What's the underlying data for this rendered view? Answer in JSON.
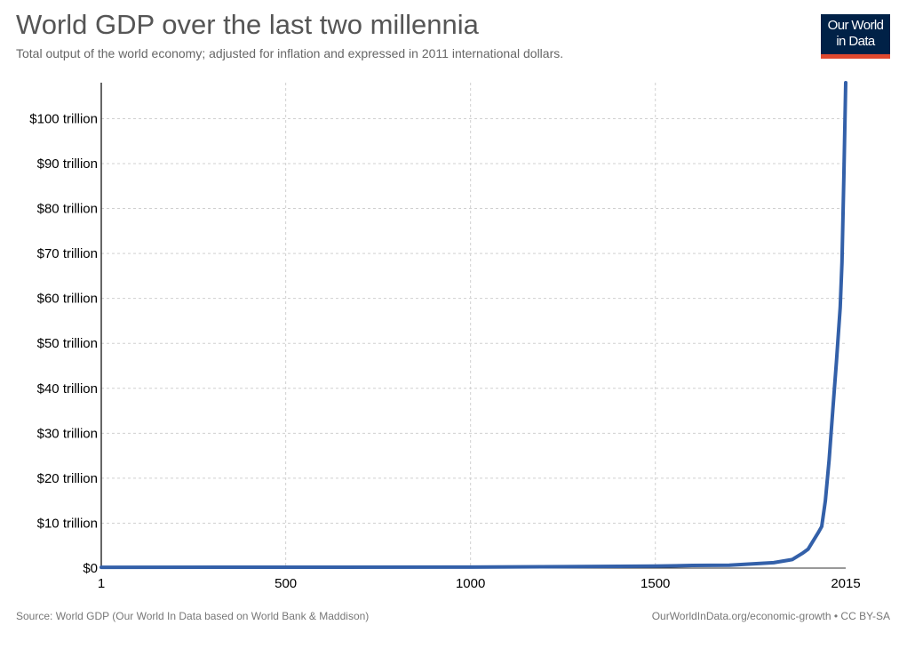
{
  "header": {
    "title": "World GDP over the last two millennia",
    "subtitle": "Total output of the world economy; adjusted for inflation and expressed in 2011 international dollars."
  },
  "logo": {
    "line1": "Our World",
    "line2": "in Data",
    "bg_color": "#002147",
    "accent_color": "#E0492F"
  },
  "footer": {
    "source": "Source: World GDP (Our World In Data based on World Bank & Maddison)",
    "link": "OurWorldInData.org/economic-growth • CC BY-SA"
  },
  "chart_data": {
    "type": "line",
    "title": "World GDP over the last two millennia",
    "subtitle": "Total output of the world economy; adjusted for inflation and expressed in 2011 international dollars.",
    "xlabel": "",
    "ylabel": "",
    "xlim": [
      1,
      2015
    ],
    "ylim": [
      0,
      108
    ],
    "x_ticks": [
      1,
      500,
      1000,
      1500,
      2015
    ],
    "y_ticks": [
      0,
      10,
      20,
      30,
      40,
      50,
      60,
      70,
      80,
      90,
      100
    ],
    "y_tick_labels": [
      "$0",
      "$10 trillion",
      "$20 trillion",
      "$30 trillion",
      "$40 trillion",
      "$50 trillion",
      "$60 trillion",
      "$70 trillion",
      "$80 trillion",
      "$90 trillion",
      "$100 trillion"
    ],
    "grid": true,
    "line_color": "#3360A9",
    "series": [
      {
        "x": [
          1,
          1000,
          1500,
          1600,
          1700,
          1820,
          1870,
          1900,
          1913,
          1940,
          1950,
          1960,
          1970,
          1980,
          1990,
          2000,
          2005,
          2010,
          2015
        ],
        "values": [
          0.18,
          0.21,
          0.43,
          0.6,
          0.64,
          1.2,
          1.9,
          3.4,
          4.2,
          7.8,
          9.25,
          15.0,
          24.0,
          35.0,
          46.0,
          58.0,
          68.0,
          87.0,
          108.0
        ]
      }
    ]
  }
}
